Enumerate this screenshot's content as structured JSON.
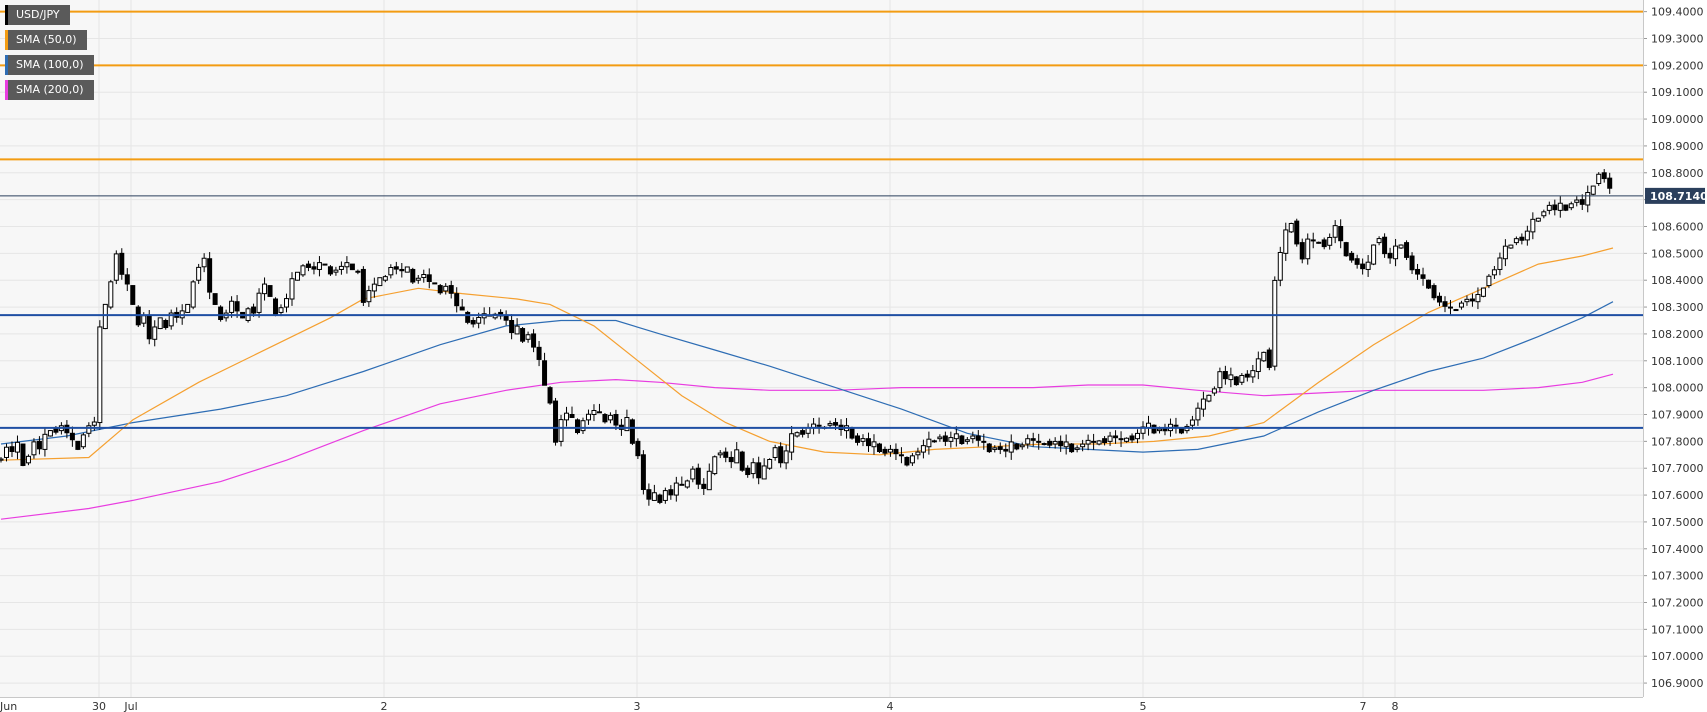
{
  "chart_data": {
    "type": "candlestick",
    "symbol": "USD/JPY",
    "ylim": [
      106.85,
      109.45
    ],
    "y_ticks": [
      "109.4000",
      "109.3000",
      "109.2000",
      "109.1000",
      "109.0000",
      "108.9000",
      "108.8000",
      "108.7000",
      "108.6000",
      "108.5000",
      "108.4000",
      "108.3000",
      "108.2000",
      "108.1000",
      "108.0000",
      "107.9000",
      "107.8000",
      "107.7000",
      "107.6000",
      "107.5000",
      "107.4000",
      "107.3000",
      "107.2000",
      "107.1000",
      "107.0000",
      "106.9000"
    ],
    "x_ticks": [
      "Jun",
      "30",
      "Jul",
      "2",
      "3",
      "4",
      "5",
      "7",
      "8"
    ],
    "current_price": "108.7140",
    "current_price_value": 108.714,
    "grid": true,
    "legend": [
      {
        "name": "USD/JPY",
        "color": "#000000"
      },
      {
        "name": "SMA (50,0)",
        "color": "#f39c12"
      },
      {
        "name": "SMA (100,0)",
        "color": "#2e6db4"
      },
      {
        "name": "SMA (200,0)",
        "color": "#e83de0"
      }
    ],
    "resistance_levels": [
      109.4,
      109.2,
      108.85
    ],
    "support_levels": [
      108.27,
      107.85
    ],
    "colors": {
      "resistance": "#f39c12",
      "support": "#1f4fa3",
      "sma50": "#f5a030",
      "sma100": "#2e6db4",
      "sma200": "#e83de0",
      "price_label_bg": "#2b3f5c"
    },
    "close_path": [
      [
        0,
        107.74
      ],
      [
        5,
        107.78
      ],
      [
        10,
        107.76
      ],
      [
        15,
        107.79
      ],
      [
        20,
        107.72
      ],
      [
        25,
        107.75
      ],
      [
        30,
        107.8
      ],
      [
        35,
        107.77
      ],
      [
        40,
        107.82
      ],
      [
        45,
        107.85
      ],
      [
        50,
        107.84
      ],
      [
        55,
        107.86
      ],
      [
        60,
        107.83
      ],
      [
        65,
        107.8
      ],
      [
        70,
        107.78
      ],
      [
        75,
        107.83
      ],
      [
        80,
        107.86
      ],
      [
        85,
        107.87
      ],
      [
        90,
        108.22
      ],
      [
        95,
        108.3
      ],
      [
        100,
        108.4
      ],
      [
        105,
        108.5
      ],
      [
        110,
        108.42
      ],
      [
        115,
        108.38
      ],
      [
        120,
        108.3
      ],
      [
        125,
        108.24
      ],
      [
        130,
        108.27
      ],
      [
        135,
        108.18
      ],
      [
        140,
        108.22
      ],
      [
        145,
        108.25
      ],
      [
        150,
        108.23
      ],
      [
        155,
        108.28
      ],
      [
        160,
        108.26
      ],
      [
        165,
        108.28
      ],
      [
        170,
        108.3
      ],
      [
        175,
        108.4
      ],
      [
        180,
        108.45
      ],
      [
        185,
        108.48
      ],
      [
        190,
        108.35
      ],
      [
        195,
        108.3
      ],
      [
        200,
        108.26
      ],
      [
        205,
        108.28
      ],
      [
        210,
        108.32
      ],
      [
        215,
        108.28
      ],
      [
        220,
        108.25
      ],
      [
        225,
        108.3
      ],
      [
        230,
        108.28
      ],
      [
        235,
        108.35
      ],
      [
        240,
        108.38
      ],
      [
        245,
        108.33
      ],
      [
        250,
        108.28
      ],
      [
        255,
        108.3
      ],
      [
        260,
        108.33
      ],
      [
        265,
        108.4
      ],
      [
        270,
        108.42
      ],
      [
        275,
        108.46
      ],
      [
        280,
        108.45
      ],
      [
        285,
        108.44
      ],
      [
        290,
        108.46
      ],
      [
        295,
        108.45
      ],
      [
        300,
        108.43
      ],
      [
        305,
        108.44
      ],
      [
        310,
        108.45
      ],
      [
        315,
        108.46
      ],
      [
        320,
        108.43
      ],
      [
        325,
        108.44
      ],
      [
        330,
        108.32
      ],
      [
        335,
        108.36
      ],
      [
        340,
        108.38
      ],
      [
        345,
        108.4
      ],
      [
        350,
        108.42
      ],
      [
        355,
        108.45
      ],
      [
        360,
        108.44
      ],
      [
        365,
        108.43
      ],
      [
        370,
        108.44
      ],
      [
        375,
        108.4
      ],
      [
        380,
        108.41
      ],
      [
        385,
        108.42
      ],
      [
        390,
        108.39
      ],
      [
        395,
        108.38
      ],
      [
        400,
        108.36
      ],
      [
        405,
        108.38
      ],
      [
        410,
        108.35
      ],
      [
        415,
        108.3
      ],
      [
        420,
        108.28
      ],
      [
        425,
        108.25
      ],
      [
        430,
        108.24
      ],
      [
        435,
        108.26
      ],
      [
        440,
        108.27
      ],
      [
        445,
        108.26
      ],
      [
        450,
        108.28
      ],
      [
        455,
        108.27
      ],
      [
        460,
        108.25
      ],
      [
        465,
        108.2
      ],
      [
        470,
        108.22
      ],
      [
        475,
        108.18
      ],
      [
        480,
        108.2
      ],
      [
        485,
        108.15
      ],
      [
        490,
        108.1
      ],
      [
        495,
        108.0
      ],
      [
        500,
        107.95
      ],
      [
        505,
        107.8
      ],
      [
        510,
        107.88
      ],
      [
        515,
        107.9
      ],
      [
        520,
        107.88
      ],
      [
        525,
        107.84
      ],
      [
        530,
        107.88
      ],
      [
        535,
        107.9
      ],
      [
        540,
        107.91
      ],
      [
        545,
        107.9
      ],
      [
        550,
        107.88
      ],
      [
        555,
        107.9
      ],
      [
        560,
        107.86
      ],
      [
        565,
        107.84
      ],
      [
        570,
        107.88
      ],
      [
        575,
        107.8
      ],
      [
        580,
        107.75
      ],
      [
        585,
        107.62
      ],
      [
        590,
        107.58
      ],
      [
        595,
        107.6
      ],
      [
        600,
        107.58
      ],
      [
        605,
        107.62
      ],
      [
        610,
        107.6
      ],
      [
        615,
        107.64
      ],
      [
        620,
        107.63
      ],
      [
        625,
        107.66
      ],
      [
        630,
        107.7
      ],
      [
        635,
        107.64
      ],
      [
        640,
        107.62
      ],
      [
        645,
        107.68
      ],
      [
        650,
        107.75
      ],
      [
        655,
        107.76
      ],
      [
        660,
        107.74
      ],
      [
        665,
        107.72
      ],
      [
        670,
        107.76
      ],
      [
        675,
        107.7
      ],
      [
        680,
        107.68
      ],
      [
        685,
        107.72
      ],
      [
        690,
        107.66
      ],
      [
        695,
        107.7
      ],
      [
        700,
        107.74
      ],
      [
        705,
        107.78
      ],
      [
        710,
        107.72
      ],
      [
        715,
        107.76
      ],
      [
        720,
        107.82
      ],
      [
        725,
        107.84
      ],
      [
        730,
        107.83
      ],
      [
        735,
        107.85
      ],
      [
        740,
        107.86
      ],
      [
        745,
        107.85
      ],
      [
        750,
        107.86
      ],
      [
        755,
        107.87
      ],
      [
        760,
        107.86
      ],
      [
        765,
        107.84
      ],
      [
        770,
        107.85
      ],
      [
        775,
        107.82
      ],
      [
        780,
        107.8
      ],
      [
        785,
        107.81
      ],
      [
        790,
        107.78
      ],
      [
        795,
        107.79
      ],
      [
        800,
        107.77
      ],
      [
        805,
        107.76
      ],
      [
        810,
        107.77
      ],
      [
        815,
        107.75
      ],
      [
        820,
        107.74
      ],
      [
        825,
        107.72
      ],
      [
        830,
        107.75
      ],
      [
        835,
        107.76
      ],
      [
        840,
        107.78
      ],
      [
        845,
        107.8
      ],
      [
        850,
        107.81
      ],
      [
        855,
        107.82
      ],
      [
        860,
        107.8
      ],
      [
        865,
        107.81
      ],
      [
        870,
        107.82
      ],
      [
        875,
        107.8
      ],
      [
        880,
        107.81
      ],
      [
        885,
        107.82
      ],
      [
        890,
        107.8
      ],
      [
        895,
        107.79
      ],
      [
        900,
        107.77
      ],
      [
        905,
        107.78
      ],
      [
        910,
        107.77
      ],
      [
        915,
        107.76
      ],
      [
        920,
        107.79
      ],
      [
        925,
        107.78
      ],
      [
        930,
        107.79
      ],
      [
        935,
        107.81
      ],
      [
        940,
        107.8
      ],
      [
        945,
        107.79
      ],
      [
        950,
        107.8
      ],
      [
        955,
        107.79
      ],
      [
        960,
        107.8
      ],
      [
        965,
        107.78
      ],
      [
        970,
        107.79
      ],
      [
        975,
        107.77
      ],
      [
        980,
        107.78
      ],
      [
        985,
        107.79
      ],
      [
        990,
        107.8
      ],
      [
        995,
        107.79
      ],
      [
        1000,
        107.81
      ],
      [
        1005,
        107.8
      ],
      [
        1010,
        107.82
      ],
      [
        1015,
        107.81
      ],
      [
        1020,
        107.8
      ],
      [
        1025,
        107.82
      ],
      [
        1030,
        107.81
      ],
      [
        1035,
        107.83
      ],
      [
        1040,
        107.85
      ],
      [
        1045,
        107.86
      ],
      [
        1050,
        107.84
      ],
      [
        1055,
        107.85
      ],
      [
        1060,
        107.84
      ],
      [
        1065,
        107.86
      ],
      [
        1070,
        107.85
      ],
      [
        1075,
        107.84
      ],
      [
        1080,
        107.86
      ],
      [
        1085,
        107.88
      ],
      [
        1090,
        107.92
      ],
      [
        1095,
        107.95
      ],
      [
        1100,
        107.98
      ],
      [
        1105,
        108.0
      ],
      [
        1110,
        108.06
      ],
      [
        1115,
        108.03
      ],
      [
        1120,
        108.04
      ],
      [
        1125,
        108.02
      ],
      [
        1130,
        108.05
      ],
      [
        1135,
        108.04
      ],
      [
        1140,
        108.06
      ],
      [
        1145,
        108.1
      ],
      [
        1150,
        108.14
      ],
      [
        1155,
        108.08
      ],
      [
        1160,
        108.4
      ],
      [
        1165,
        108.5
      ],
      [
        1170,
        108.58
      ],
      [
        1175,
        108.62
      ],
      [
        1180,
        108.54
      ],
      [
        1185,
        108.48
      ],
      [
        1190,
        108.55
      ],
      [
        1195,
        108.54
      ],
      [
        1200,
        108.55
      ],
      [
        1205,
        108.53
      ],
      [
        1210,
        108.56
      ],
      [
        1215,
        108.6
      ],
      [
        1220,
        108.54
      ],
      [
        1225,
        108.5
      ],
      [
        1230,
        108.48
      ],
      [
        1235,
        108.46
      ],
      [
        1240,
        108.44
      ],
      [
        1245,
        108.46
      ],
      [
        1250,
        108.54
      ],
      [
        1255,
        108.56
      ],
      [
        1260,
        108.5
      ],
      [
        1265,
        108.48
      ],
      [
        1270,
        108.52
      ],
      [
        1275,
        108.54
      ],
      [
        1280,
        108.49
      ],
      [
        1285,
        108.44
      ],
      [
        1290,
        108.42
      ],
      [
        1295,
        108.4
      ],
      [
        1300,
        108.38
      ],
      [
        1305,
        108.34
      ],
      [
        1310,
        108.32
      ],
      [
        1315,
        108.3
      ],
      [
        1320,
        108.29
      ],
      [
        1325,
        108.3
      ],
      [
        1330,
        108.32
      ],
      [
        1335,
        108.33
      ],
      [
        1340,
        108.32
      ],
      [
        1345,
        108.34
      ],
      [
        1350,
        108.38
      ],
      [
        1355,
        108.42
      ],
      [
        1360,
        108.44
      ],
      [
        1365,
        108.48
      ],
      [
        1370,
        108.52
      ],
      [
        1375,
        108.54
      ],
      [
        1380,
        108.56
      ],
      [
        1385,
        108.55
      ],
      [
        1390,
        108.58
      ],
      [
        1395,
        108.62
      ],
      [
        1400,
        108.64
      ],
      [
        1405,
        108.66
      ],
      [
        1410,
        108.68
      ],
      [
        1415,
        108.66
      ],
      [
        1420,
        108.68
      ],
      [
        1425,
        108.67
      ],
      [
        1430,
        108.69
      ],
      [
        1435,
        108.7
      ],
      [
        1440,
        108.68
      ],
      [
        1445,
        108.72
      ],
      [
        1450,
        108.76
      ],
      [
        1455,
        108.8
      ],
      [
        1460,
        108.78
      ],
      [
        1465,
        108.74
      ],
      [
        1468,
        108.714
      ]
    ],
    "sma50_points": [
      [
        0,
        107.73
      ],
      [
        80,
        107.74
      ],
      [
        120,
        107.88
      ],
      [
        180,
        108.02
      ],
      [
        250,
        108.16
      ],
      [
        300,
        108.26
      ],
      [
        330,
        108.33
      ],
      [
        380,
        108.37
      ],
      [
        420,
        108.35
      ],
      [
        470,
        108.33
      ],
      [
        500,
        108.31
      ],
      [
        540,
        108.23
      ],
      [
        580,
        108.1
      ],
      [
        620,
        107.97
      ],
      [
        660,
        107.87
      ],
      [
        700,
        107.8
      ],
      [
        750,
        107.76
      ],
      [
        800,
        107.75
      ],
      [
        850,
        107.77
      ],
      [
        900,
        107.78
      ],
      [
        950,
        107.79
      ],
      [
        1000,
        107.79
      ],
      [
        1050,
        107.8
      ],
      [
        1100,
        107.82
      ],
      [
        1150,
        107.87
      ],
      [
        1200,
        108.02
      ],
      [
        1250,
        108.16
      ],
      [
        1300,
        108.28
      ],
      [
        1350,
        108.37
      ],
      [
        1400,
        108.46
      ],
      [
        1440,
        108.49
      ],
      [
        1468,
        108.52
      ]
    ],
    "sma100_points": [
      [
        0,
        107.79
      ],
      [
        60,
        107.82
      ],
      [
        120,
        107.87
      ],
      [
        200,
        107.92
      ],
      [
        260,
        107.97
      ],
      [
        330,
        108.06
      ],
      [
        400,
        108.16
      ],
      [
        460,
        108.23
      ],
      [
        510,
        108.25
      ],
      [
        560,
        108.25
      ],
      [
        600,
        108.2
      ],
      [
        650,
        108.14
      ],
      [
        700,
        108.08
      ],
      [
        760,
        108.0
      ],
      [
        820,
        107.92
      ],
      [
        880,
        107.83
      ],
      [
        940,
        107.78
      ],
      [
        990,
        107.77
      ],
      [
        1040,
        107.76
      ],
      [
        1090,
        107.77
      ],
      [
        1150,
        107.82
      ],
      [
        1200,
        107.91
      ],
      [
        1250,
        107.99
      ],
      [
        1300,
        108.06
      ],
      [
        1350,
        108.11
      ],
      [
        1400,
        108.19
      ],
      [
        1440,
        108.26
      ],
      [
        1468,
        108.32
      ]
    ],
    "sma200_points": [
      [
        0,
        107.51
      ],
      [
        80,
        107.55
      ],
      [
        120,
        107.58
      ],
      [
        200,
        107.65
      ],
      [
        260,
        107.73
      ],
      [
        330,
        107.84
      ],
      [
        400,
        107.94
      ],
      [
        460,
        107.99
      ],
      [
        510,
        108.02
      ],
      [
        560,
        108.03
      ],
      [
        600,
        108.02
      ],
      [
        650,
        108.0
      ],
      [
        700,
        107.99
      ],
      [
        760,
        107.99
      ],
      [
        820,
        108.0
      ],
      [
        880,
        108.0
      ],
      [
        940,
        108.0
      ],
      [
        990,
        108.01
      ],
      [
        1040,
        108.01
      ],
      [
        1090,
        107.99
      ],
      [
        1150,
        107.97
      ],
      [
        1200,
        107.98
      ],
      [
        1250,
        107.99
      ],
      [
        1300,
        107.99
      ],
      [
        1350,
        107.99
      ],
      [
        1400,
        108.0
      ],
      [
        1440,
        108.02
      ],
      [
        1468,
        108.05
      ]
    ]
  }
}
